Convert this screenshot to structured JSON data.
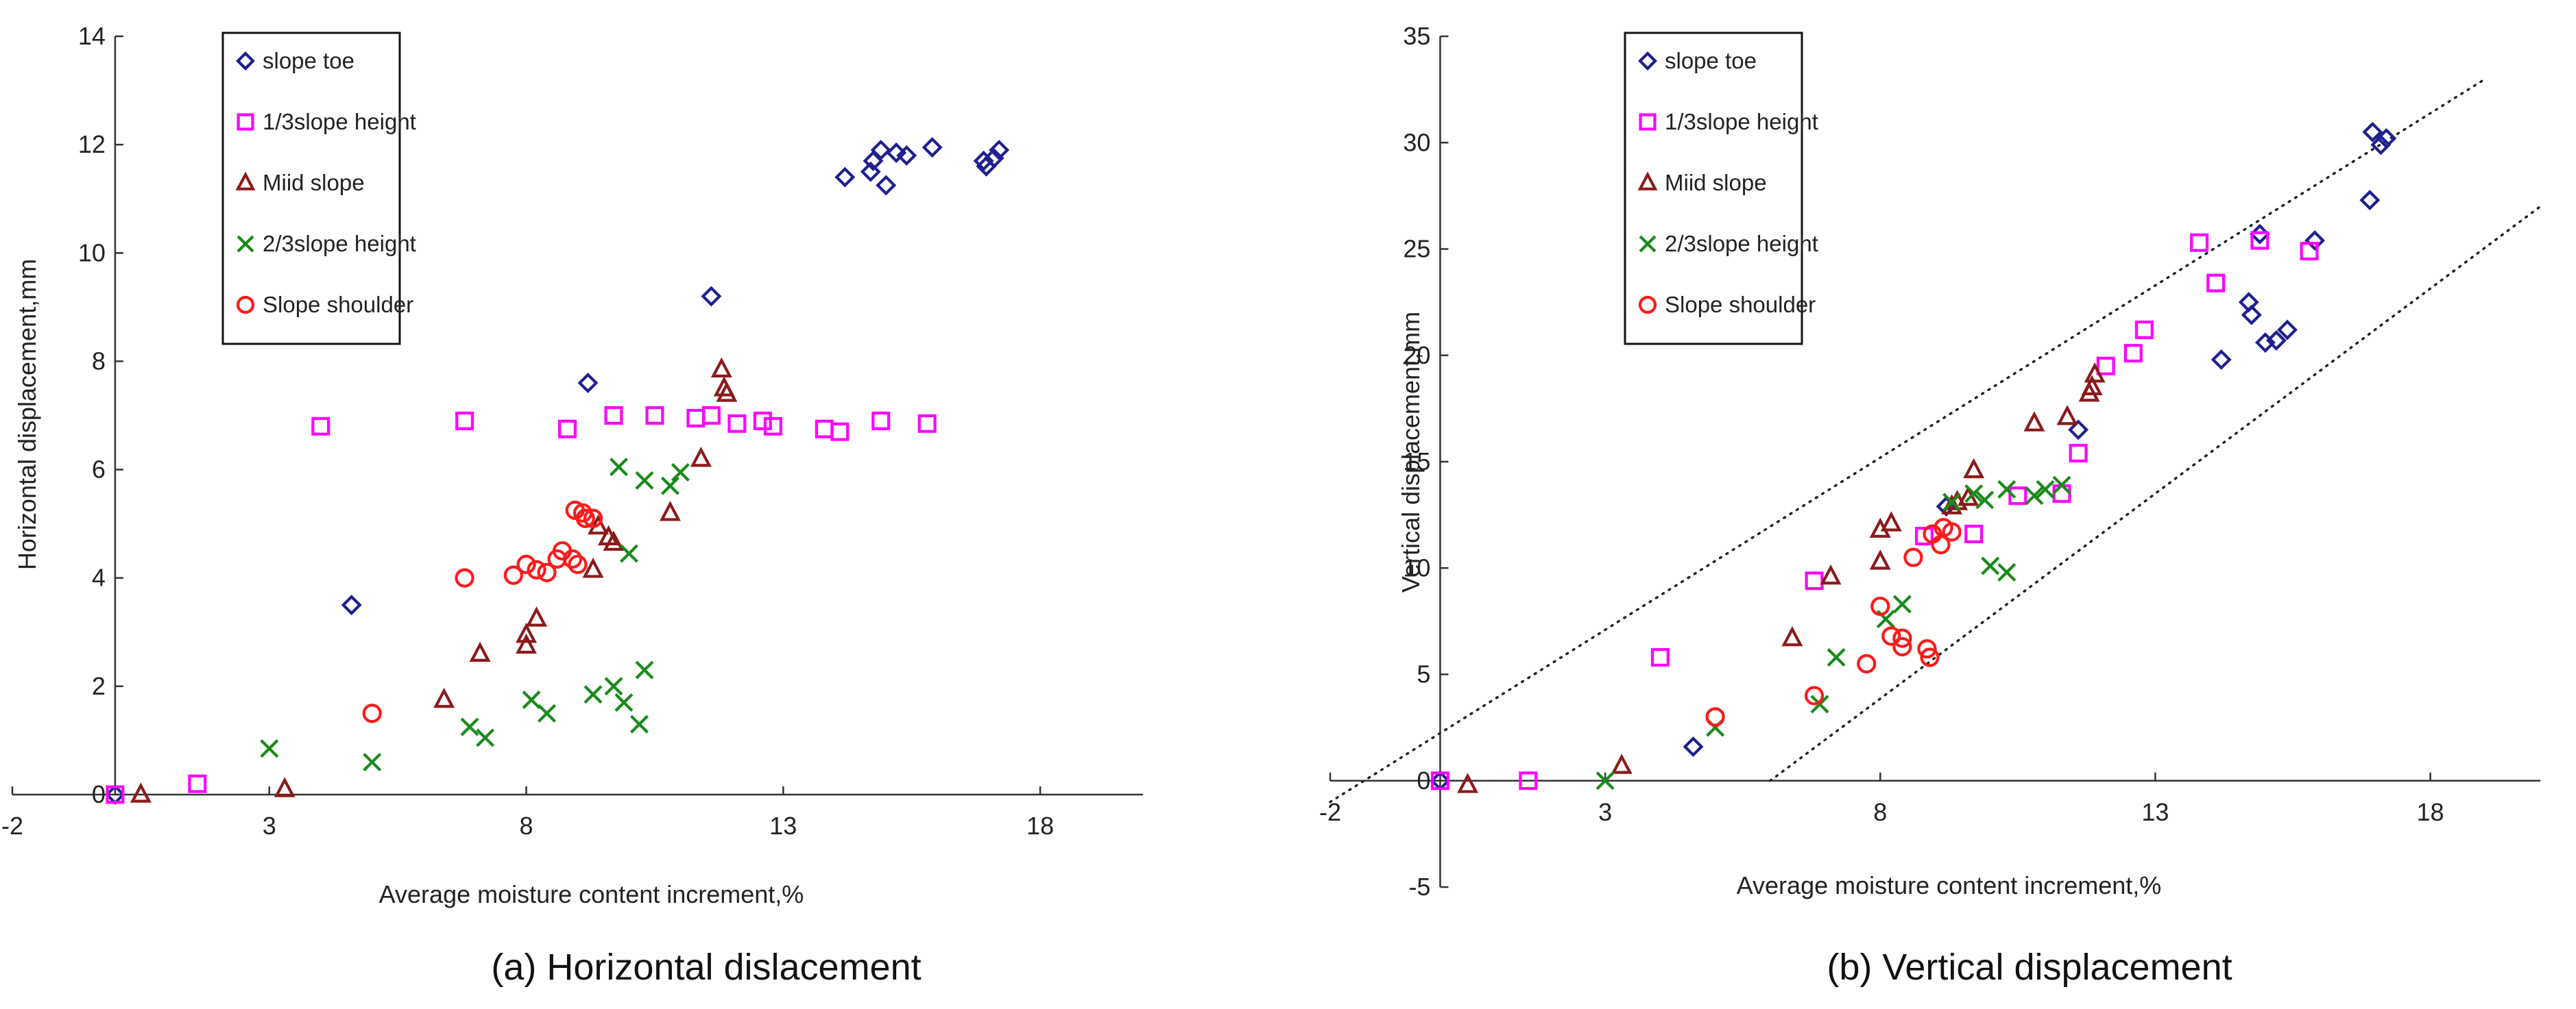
{
  "chart_data": [
    {
      "type": "scatter",
      "caption": "(a) Horizontal dislacement",
      "xlabel": "Average moisture content increment,%",
      "ylabel": "Horizontal displacement,mm",
      "xlim": [
        -2,
        20
      ],
      "ylim": [
        0,
        14
      ],
      "xticks": [
        "-2",
        "3",
        "8",
        "13",
        "18"
      ],
      "yticks": [
        "0",
        "2",
        "4",
        "6",
        "8",
        "10",
        "12",
        "14"
      ],
      "series": [
        {
          "name": "slope toe",
          "marker": "diamond",
          "color": "#1f1f8f",
          "points": [
            [
              0,
              0
            ],
            [
              4.6,
              3.5
            ],
            [
              9.2,
              7.6
            ],
            [
              11.6,
              9.2
            ],
            [
              14.2,
              11.4
            ],
            [
              14.7,
              11.5
            ],
            [
              14.75,
              11.7
            ],
            [
              14.9,
              11.9
            ],
            [
              15.0,
              11.25
            ],
            [
              15.2,
              11.85
            ],
            [
              15.4,
              11.8
            ],
            [
              15.9,
              11.95
            ],
            [
              16.9,
              11.7
            ],
            [
              16.95,
              11.6
            ],
            [
              17.1,
              11.75
            ],
            [
              17.2,
              11.9
            ]
          ]
        },
        {
          "name": "1/3slope height",
          "marker": "square",
          "color": "#ff00ff",
          "points": [
            [
              0,
              0
            ],
            [
              1.6,
              0.2
            ],
            [
              4.0,
              6.8
            ],
            [
              6.8,
              6.9
            ],
            [
              8.8,
              6.75
            ],
            [
              9.7,
              7.0
            ],
            [
              10.5,
              7.0
            ],
            [
              11.3,
              6.95
            ],
            [
              11.6,
              7.0
            ],
            [
              12.1,
              6.85
            ],
            [
              12.6,
              6.9
            ],
            [
              12.8,
              6.8
            ],
            [
              13.8,
              6.75
            ],
            [
              14.1,
              6.7
            ],
            [
              14.9,
              6.9
            ],
            [
              15.8,
              6.85
            ]
          ]
        },
        {
          "name": "Miid slope",
          "marker": "triangle",
          "color": "#8b1a1a",
          "points": [
            [
              0.5,
              0
            ],
            [
              3.3,
              0.1
            ],
            [
              6.4,
              1.75
            ],
            [
              7.1,
              2.6
            ],
            [
              8.0,
              2.75
            ],
            [
              8.0,
              2.95
            ],
            [
              8.2,
              3.25
            ],
            [
              9.3,
              4.15
            ],
            [
              9.4,
              4.95
            ],
            [
              9.6,
              4.75
            ],
            [
              9.7,
              4.65
            ],
            [
              10.8,
              5.2
            ],
            [
              11.4,
              6.2
            ],
            [
              11.8,
              7.85
            ],
            [
              11.85,
              7.5
            ],
            [
              11.9,
              7.4
            ]
          ]
        },
        {
          "name": "2/3slope height",
          "marker": "x",
          "color": "#1a8a1a",
          "points": [
            [
              3.0,
              0.85
            ],
            [
              5.0,
              0.6
            ],
            [
              6.9,
              1.25
            ],
            [
              7.2,
              1.05
            ],
            [
              8.1,
              1.75
            ],
            [
              8.4,
              1.5
            ],
            [
              9.3,
              1.85
            ],
            [
              9.7,
              2.0
            ],
            [
              9.9,
              1.7
            ],
            [
              10.2,
              1.3
            ],
            [
              10.3,
              2.3
            ],
            [
              9.8,
              6.05
            ],
            [
              10.0,
              4.45
            ],
            [
              10.3,
              5.8
            ],
            [
              10.8,
              5.7
            ],
            [
              11.0,
              5.95
            ]
          ]
        },
        {
          "name": "Slope shoulder",
          "marker": "circle",
          "color": "#ff1a1a",
          "points": [
            [
              5.0,
              1.5
            ],
            [
              6.8,
              4.0
            ],
            [
              7.75,
              4.05
            ],
            [
              8.0,
              4.25
            ],
            [
              8.2,
              4.15
            ],
            [
              8.4,
              4.1
            ],
            [
              8.6,
              4.35
            ],
            [
              8.7,
              4.5
            ],
            [
              8.9,
              4.35
            ],
            [
              9.0,
              4.25
            ],
            [
              8.95,
              5.25
            ],
            [
              9.1,
              5.2
            ],
            [
              9.15,
              5.1
            ],
            [
              9.3,
              5.1
            ]
          ]
        }
      ],
      "legend": "top-left"
    },
    {
      "type": "scatter",
      "caption": "(b) Vertical displacement",
      "xlabel": "Average moisture content increment,%",
      "ylabel": "Vertical displacement,mm",
      "xlim": [
        -2,
        20
      ],
      "ylim": [
        -5,
        35
      ],
      "xticks": [
        "-2",
        "3",
        "8",
        "13",
        "18"
      ],
      "yticks": [
        "-5",
        "0",
        "5",
        "10",
        "15",
        "20",
        "25",
        "30",
        "35"
      ],
      "bounds": [
        {
          "name": "upper-bound",
          "from": [
            -2,
            -1
          ],
          "to": [
            19,
            33
          ]
        },
        {
          "name": "lower-bound",
          "from": [
            6,
            0
          ],
          "to": [
            20,
            27
          ]
        }
      ],
      "series": [
        {
          "name": "slope toe",
          "marker": "diamond",
          "color": "#1f1f8f",
          "points": [
            [
              0,
              0
            ],
            [
              4.6,
              1.6
            ],
            [
              9.2,
              12.9
            ],
            [
              11.6,
              16.5
            ],
            [
              14.2,
              19.8
            ],
            [
              14.7,
              22.5
            ],
            [
              14.75,
              21.9
            ],
            [
              14.9,
              25.7
            ],
            [
              15.0,
              20.6
            ],
            [
              15.2,
              20.7
            ],
            [
              15.4,
              21.2
            ],
            [
              15.9,
              25.4
            ],
            [
              16.9,
              27.3
            ],
            [
              16.95,
              30.5
            ],
            [
              17.1,
              29.9
            ],
            [
              17.2,
              30.2
            ]
          ]
        },
        {
          "name": "1/3slope height",
          "marker": "square",
          "color": "#ff00ff",
          "points": [
            [
              0,
              0
            ],
            [
              1.6,
              0
            ],
            [
              4.0,
              5.8
            ],
            [
              6.8,
              9.4
            ],
            [
              8.8,
              11.5
            ],
            [
              9.7,
              11.6
            ],
            [
              10.5,
              13.4
            ],
            [
              11.3,
              13.5
            ],
            [
              11.6,
              15.4
            ],
            [
              12.1,
              19.5
            ],
            [
              12.6,
              20.1
            ],
            [
              12.8,
              21.2
            ],
            [
              13.8,
              25.3
            ],
            [
              14.1,
              23.4
            ],
            [
              14.9,
              25.4
            ],
            [
              15.8,
              24.9
            ]
          ]
        },
        {
          "name": "Miid slope",
          "marker": "triangle",
          "color": "#8b1a1a",
          "points": [
            [
              0.5,
              -0.2
            ],
            [
              3.3,
              0.7
            ],
            [
              6.4,
              6.7
            ],
            [
              7.1,
              9.6
            ],
            [
              8.0,
              10.3
            ],
            [
              8.0,
              11.8
            ],
            [
              8.2,
              12.1
            ],
            [
              9.3,
              12.9
            ],
            [
              9.4,
              13.1
            ],
            [
              9.6,
              13.3
            ],
            [
              9.7,
              14.6
            ],
            [
              10.8,
              16.8
            ],
            [
              11.4,
              17.1
            ],
            [
              11.8,
              18.2
            ],
            [
              11.85,
              18.5
            ],
            [
              11.9,
              19.1
            ]
          ]
        },
        {
          "name": "2/3slope height",
          "marker": "x",
          "color": "#1a8a1a",
          "points": [
            [
              3.0,
              0
            ],
            [
              5.0,
              2.5
            ],
            [
              6.9,
              3.6
            ],
            [
              7.2,
              5.8
            ],
            [
              8.1,
              7.6
            ],
            [
              8.4,
              8.3
            ],
            [
              9.3,
              13.1
            ],
            [
              9.7,
              13.5
            ],
            [
              9.9,
              13.2
            ],
            [
              10.0,
              10.1
            ],
            [
              10.3,
              9.8
            ],
            [
              10.3,
              13.7
            ],
            [
              10.8,
              13.4
            ],
            [
              11.0,
              13.7
            ],
            [
              11.3,
              13.9
            ]
          ]
        },
        {
          "name": "Slope shoulder",
          "marker": "circle",
          "color": "#ff1a1a",
          "points": [
            [
              5.0,
              3.0
            ],
            [
              6.8,
              4.0
            ],
            [
              7.75,
              5.5
            ],
            [
              8.0,
              8.2
            ],
            [
              8.2,
              6.8
            ],
            [
              8.4,
              6.3
            ],
            [
              8.4,
              6.7
            ],
            [
              8.6,
              10.5
            ],
            [
              8.9,
              5.8
            ],
            [
              8.85,
              6.2
            ],
            [
              8.95,
              11.6
            ],
            [
              9.1,
              11.1
            ],
            [
              9.15,
              11.9
            ],
            [
              9.3,
              11.7
            ]
          ]
        }
      ],
      "legend": "top-left"
    }
  ]
}
